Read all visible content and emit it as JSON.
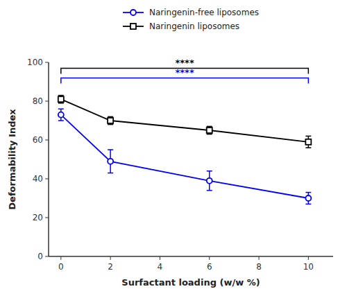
{
  "chart_data": {
    "type": "line",
    "x": [
      0,
      2,
      6,
      10
    ],
    "series": [
      {
        "name": "Naringenin-free liposomes",
        "color": "#0000FF",
        "marker": "circle",
        "values": [
          73,
          49,
          39,
          30
        ],
        "errors": [
          3,
          6,
          5,
          3
        ]
      },
      {
        "name": "Naringenin liposomes",
        "color": "#000000",
        "marker": "square",
        "values": [
          81,
          70,
          65,
          59
        ],
        "errors": [
          2,
          2,
          2,
          3
        ]
      }
    ],
    "xlabel": "Surfactant loading (w/w %)",
    "ylabel": "Deformability Index",
    "xlim": [
      -0.5,
      11
    ],
    "ylim": [
      0,
      100
    ],
    "xticks": [
      0,
      2,
      4,
      6,
      8,
      10
    ],
    "yticks": [
      0,
      20,
      40,
      60,
      80,
      100
    ],
    "grid": false,
    "legend": "top",
    "annotations": [
      {
        "text": "****",
        "x1": 0,
        "x2": 10,
        "y": 97,
        "color": "#000000"
      },
      {
        "text": "****",
        "x1": 0,
        "x2": 10,
        "y": 92,
        "color": "#0000FF"
      }
    ]
  }
}
